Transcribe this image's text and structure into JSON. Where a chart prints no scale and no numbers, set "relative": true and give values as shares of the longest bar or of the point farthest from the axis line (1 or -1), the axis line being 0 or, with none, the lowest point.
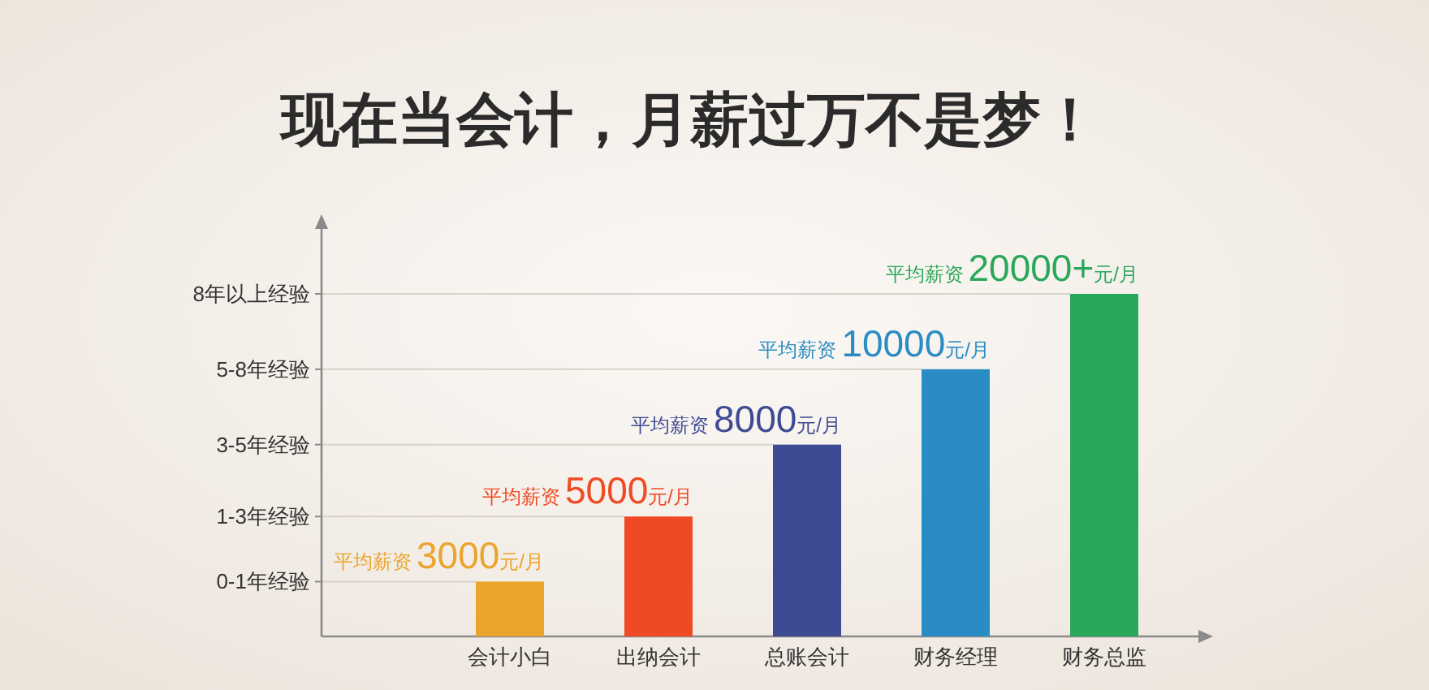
{
  "chart_data": {
    "type": "bar",
    "title": "现在当会计，月薪过万不是梦！",
    "categories": [
      "会计小白",
      "出纳会计",
      "总账会计",
      "财务经理",
      "财务总监"
    ],
    "values": [
      0.16,
      0.35,
      0.56,
      0.78,
      1
    ],
    "relative": true,
    "colors": [
      "#eba42c",
      "#f04a24",
      "#3f4a94",
      "#2a8cc4",
      "#2aa85a"
    ],
    "ref_lines": [
      {
        "axis": "y",
        "value": 0.16,
        "label": "0-1年经验"
      },
      {
        "axis": "y",
        "value": 0.35,
        "label": "1-3年经验"
      },
      {
        "axis": "y",
        "value": 0.56,
        "label": "3-5年经验"
      },
      {
        "axis": "y",
        "value": 0.78,
        "label": "5-8年经验"
      },
      {
        "axis": "y",
        "value": 1,
        "label": "8年以上经验"
      }
    ],
    "annotations": [
      {
        "text": "平均薪资**3000**元/月",
        "x": "会计小白",
        "y": 0.16
      },
      {
        "text": "平均薪资**5000**元/月",
        "x": "出纳会计",
        "y": 0.35
      },
      {
        "text": "平均薪资**8000**元/月",
        "x": "总账会计",
        "y": 0.56
      },
      {
        "text": "平均薪资**10000**元/月",
        "x": "财务经理",
        "y": 0.78
      },
      {
        "text": "平均薪资**20000+**元/月",
        "x": "财务总监",
        "y": 1
      }
    ]
  }
}
